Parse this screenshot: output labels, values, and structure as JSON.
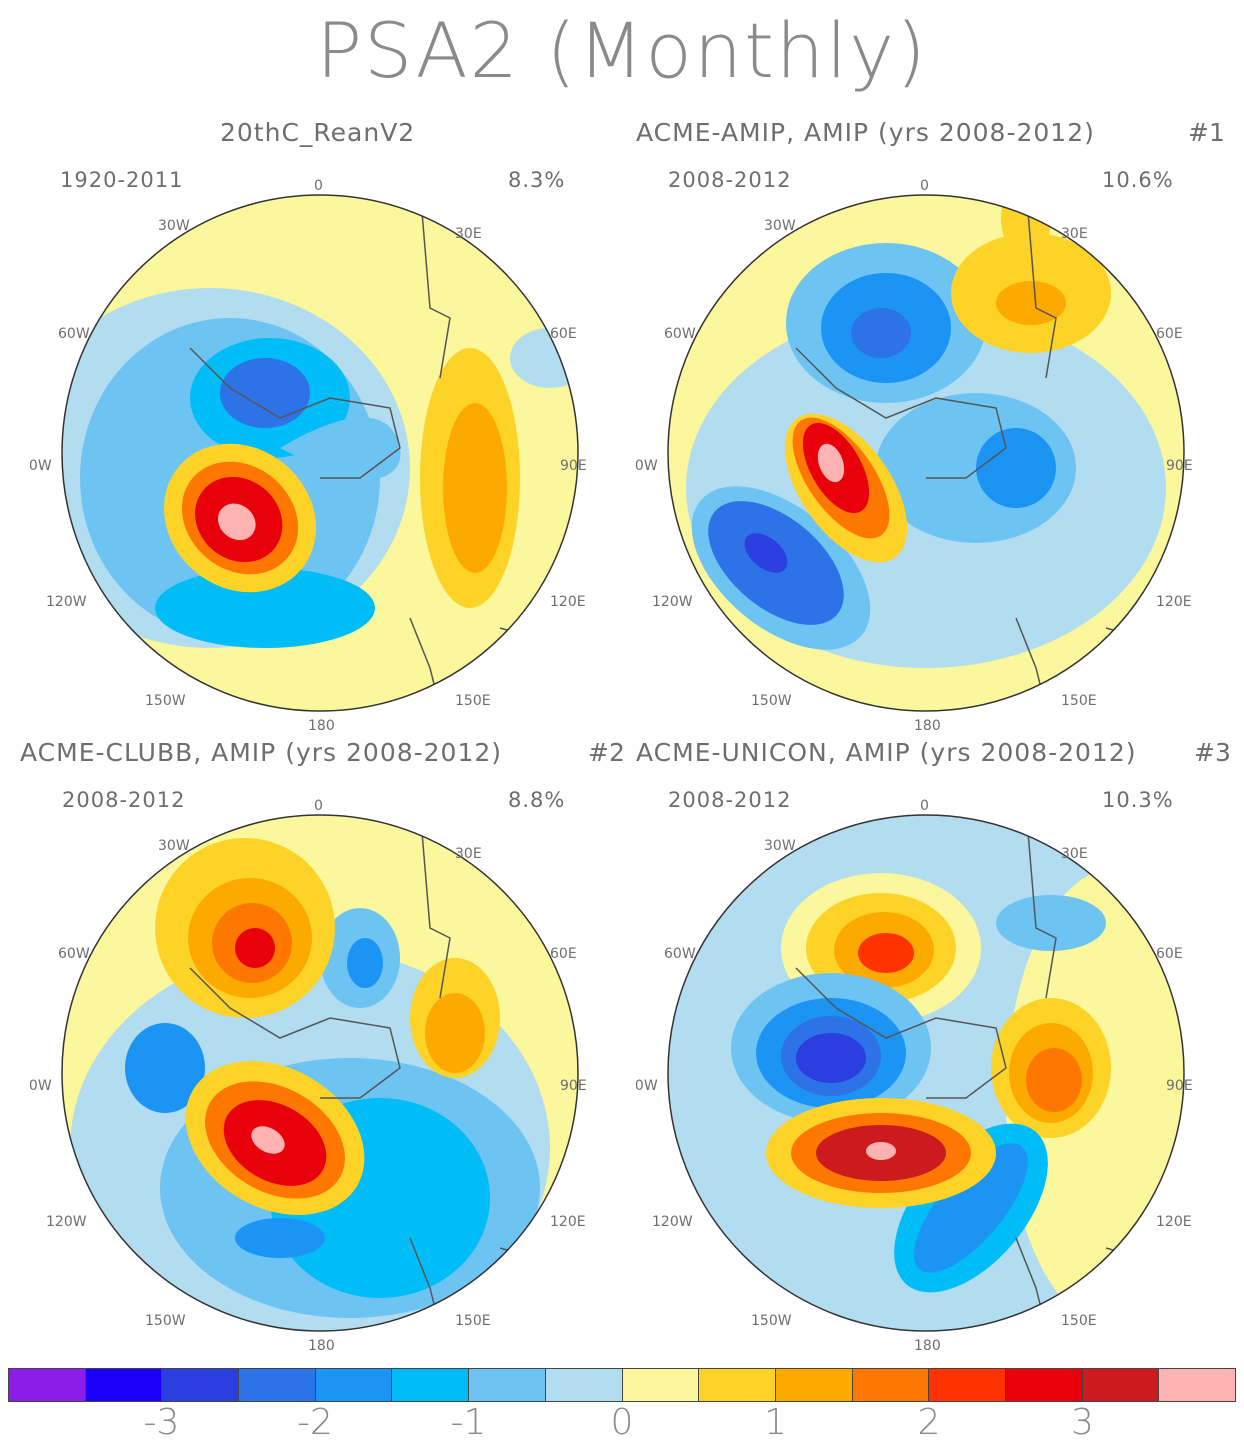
{
  "title": "PSA2 (Monthly)",
  "panels": [
    {
      "title": "20thC_ReanV2",
      "number": "",
      "period": "1920-2011",
      "percent": "8.3%"
    },
    {
      "title": "ACME-AMIP, AMIP (yrs 2008-2012)",
      "number": "#1",
      "period": "2008-2012",
      "percent": "10.6%"
    },
    {
      "title": "ACME-CLUBB, AMIP (yrs 2008-2012)",
      "number": "#2",
      "period": "2008-2012",
      "percent": "8.8%"
    },
    {
      "title": "ACME-UNICON, AMIP (yrs 2008-2012)",
      "number": "#3",
      "period": "2008-2012",
      "percent": "10.3%"
    }
  ],
  "longitude_labels": {
    "top": "0",
    "bottom": "180",
    "left": [
      "30W",
      "60W",
      "90W",
      "120W",
      "150W"
    ],
    "right": [
      "30E",
      "60E",
      "90E",
      "120E",
      "150E"
    ]
  },
  "colorbar": {
    "colors": [
      "#8c1de8",
      "#1a00fa",
      "#2b3ee0",
      "#2d72e6",
      "#1c94f4",
      "#00bdf8",
      "#6dc4f2",
      "#b2dcf0",
      "#fbf79c",
      "#fdd327",
      "#fdaa00",
      "#fe7700",
      "#ff3300",
      "#e8000a",
      "#cc1a1e",
      "#ffb2b2"
    ],
    "tick_labels": [
      "-3",
      "-2",
      "-1",
      "0",
      "1",
      "2",
      "3"
    ]
  }
}
